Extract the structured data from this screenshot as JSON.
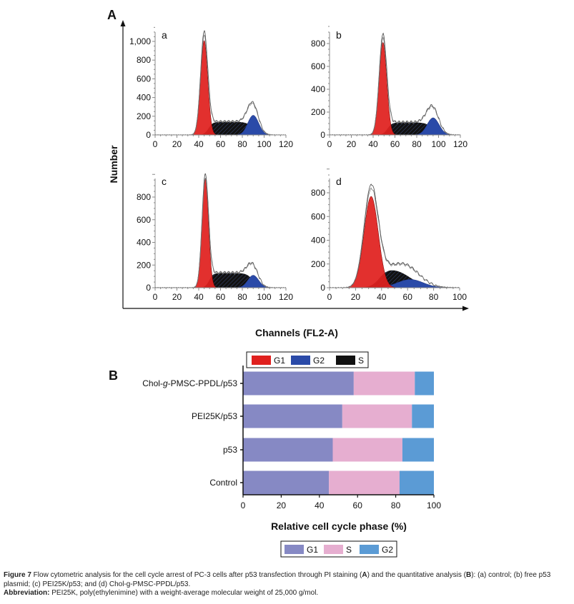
{
  "figure": {
    "panel_a_letter": "A",
    "panel_b_letter": "B",
    "ylabel": "Number",
    "xlabel": "Channels (FL2-A)",
    "caption": {
      "fig_label": "Figure 7",
      "text_1": " Flow cytometric analysis for the cell cycle arrest of PC-3 cells after p53 transfection through PI staining (",
      "ref_a": "A",
      "text_2": ") and the quantitative analysis (",
      "ref_b": "B",
      "text_3": "): (a) control; (b) free p53 plasmid; (c) PEI25K/p53; and (d) Chol-g-PMSC-PPDL/p53.",
      "abbr_label": "Abbreviation:",
      "abbr_text": " PEI25K, poly(ethylenimine) with a weight-average molecular weight of 25,000 g/mol."
    }
  },
  "chart_data": [
    {
      "type": "area",
      "xlabel": "Channels (FL2-A)",
      "ylabel": "Number",
      "legend": {
        "placement": "bottom",
        "entries": [
          {
            "label": "G1",
            "color": "#e0201e"
          },
          {
            "label": "G2",
            "color": "#2a4aa8"
          },
          {
            "label": "S",
            "color": "#111111"
          }
        ]
      },
      "panels": [
        {
          "label": "a",
          "xlim": [
            0,
            120
          ],
          "xticks": [
            "0",
            "20",
            "40",
            "60",
            "80",
            "100",
            "120"
          ],
          "ylim": [
            0,
            1150
          ],
          "yticks": [
            {
              "v": 0,
              "t": "0"
            },
            {
              "v": 200,
              "t": "200"
            },
            {
              "v": 400,
              "t": "400"
            },
            {
              "v": 600,
              "t": "600"
            },
            {
              "v": 800,
              "t": "800"
            },
            {
              "v": 1000,
              "t": "1,000"
            }
          ],
          "g1": {
            "peak_channel": 45,
            "sd": 3.3,
            "height": 1010
          },
          "s": {
            "height": 140
          },
          "g2": {
            "peak_channel": 90,
            "sd": 5,
            "height": 210
          },
          "envelope_peak": 1090
        },
        {
          "label": "b",
          "xlim": [
            0,
            120
          ],
          "xticks": [
            "0",
            "20",
            "40",
            "60",
            "80",
            "100",
            "120"
          ],
          "ylim": [
            0,
            950
          ],
          "yticks": [
            {
              "v": 0,
              "t": "0"
            },
            {
              "v": 200,
              "t": "200"
            },
            {
              "v": 400,
              "t": "400"
            },
            {
              "v": 600,
              "t": "600"
            },
            {
              "v": 800,
              "t": "800"
            }
          ],
          "g1": {
            "peak_channel": 49,
            "sd": 3.5,
            "height": 810
          },
          "s": {
            "height": 110
          },
          "g2": {
            "peak_channel": 95,
            "sd": 5.5,
            "height": 150
          },
          "envelope_peak": 870
        },
        {
          "label": "c",
          "xlim": [
            0,
            120
          ],
          "xticks": [
            "0",
            "20",
            "40",
            "60",
            "80",
            "100",
            "120"
          ],
          "ylim": [
            0,
            1000
          ],
          "yticks": [
            {
              "v": 0,
              "t": "0"
            },
            {
              "v": 200,
              "t": "200"
            },
            {
              "v": 400,
              "t": "400"
            },
            {
              "v": 600,
              "t": "600"
            },
            {
              "v": 800,
              "t": "800"
            }
          ],
          "g1": {
            "peak_channel": 46,
            "sd": 3,
            "height": 960
          },
          "s": {
            "height": 130
          },
          "g2": {
            "peak_channel": 90,
            "sd": 5,
            "height": 110
          },
          "envelope_peak": 990
        },
        {
          "label": "d",
          "xlim": [
            0,
            100
          ],
          "xticks": [
            "0",
            "20",
            "40",
            "60",
            "80",
            "100"
          ],
          "ylim": [
            0,
            1000
          ],
          "yticks": [
            {
              "v": 0,
              "t": "0"
            },
            {
              "v": 200,
              "t": "200"
            },
            {
              "v": 400,
              "t": "400"
            },
            {
              "v": 600,
              "t": "600"
            },
            {
              "v": 800,
              "t": "800"
            }
          ],
          "g1": {
            "peak_channel": 32,
            "sd": 5.5,
            "height": 770
          },
          "s": {
            "height": 170
          },
          "g2": {
            "peak_channel": 62,
            "sd": 10,
            "height": 70
          },
          "envelope_peak": 850
        }
      ]
    },
    {
      "type": "bar",
      "orientation": "horizontal",
      "stacked": true,
      "categories": [
        "Chol-g-PMSC-PPDL/p53",
        "PEI25K/p53",
        "p53",
        "Control"
      ],
      "series": [
        {
          "name": "G1",
          "color": "#8689c4",
          "values": [
            58,
            52,
            47,
            45
          ]
        },
        {
          "name": "S",
          "color": "#e6aed0",
          "values": [
            32,
            36.5,
            36.5,
            37
          ]
        },
        {
          "name": "G2",
          "color": "#5b9bd5",
          "values": [
            10,
            11.5,
            16.5,
            18
          ]
        }
      ],
      "xlabel": "Relative cell cycle phase (%)",
      "xlim": [
        0,
        100
      ],
      "xticks": [
        "0",
        "20",
        "40",
        "60",
        "80",
        "100"
      ],
      "legend": {
        "placement": "bottom"
      }
    }
  ]
}
